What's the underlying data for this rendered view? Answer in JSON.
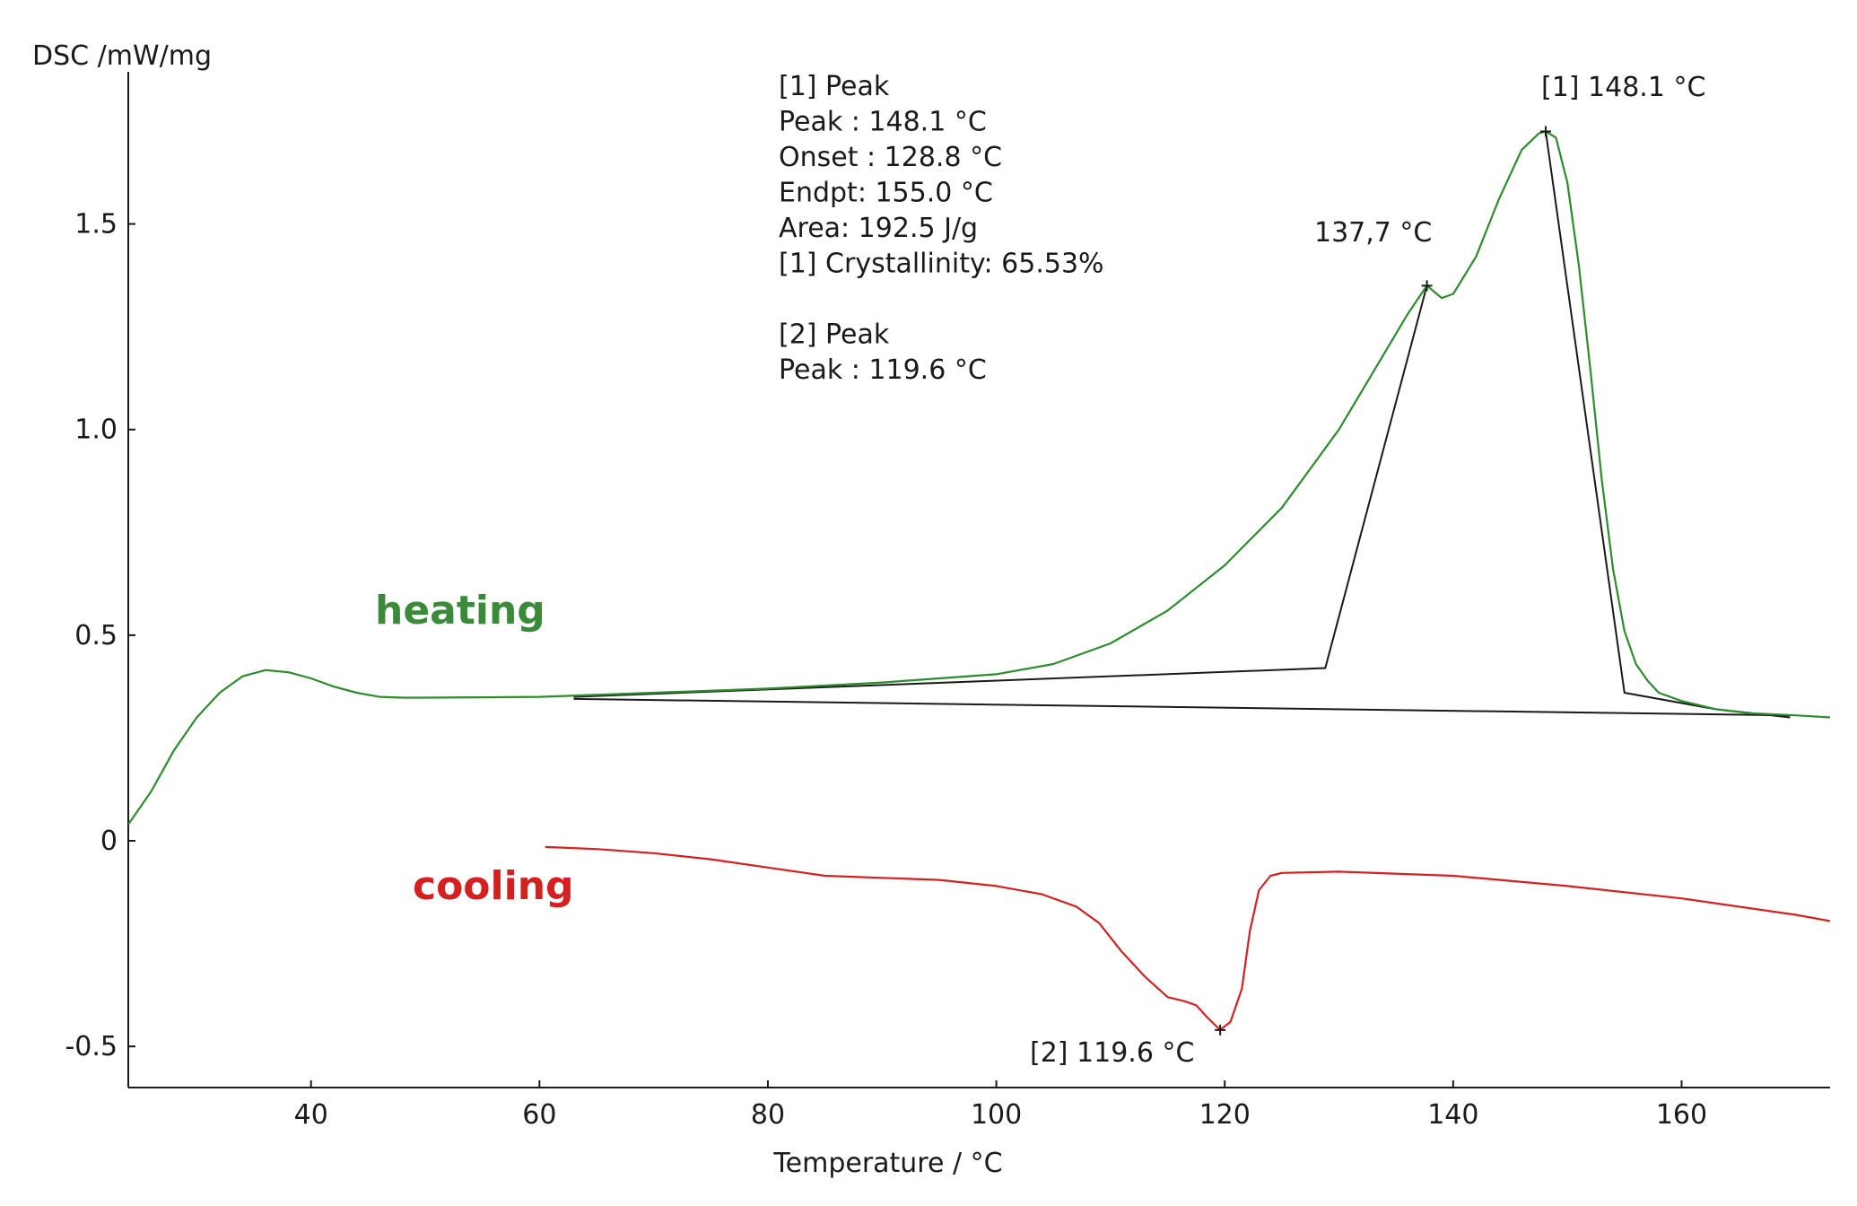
{
  "chart_data": {
    "type": "line",
    "ylabel": "DSC /mW/mg",
    "xlabel": "Temperature / °C",
    "xlim": [
      24,
      173
    ],
    "ylim": [
      -0.6,
      1.87
    ],
    "x_ticks": [
      40,
      60,
      80,
      100,
      120,
      140,
      160
    ],
    "y_ticks": [
      -0.5,
      0,
      0.5,
      1.0,
      1.5
    ],
    "y_tick_labels": [
      "-0.5",
      "0",
      "0.5",
      "1.0",
      "1.5"
    ],
    "grid": false,
    "colors": {
      "heating": "#2e8b2e",
      "cooling": "#d42020",
      "construction": "#1a1a1a"
    },
    "series": [
      {
        "name": "heating",
        "label_color": "#3a8a3a",
        "points": [
          [
            24,
            0.04
          ],
          [
            26,
            0.12
          ],
          [
            28,
            0.22
          ],
          [
            30,
            0.3
          ],
          [
            32,
            0.36
          ],
          [
            34,
            0.4
          ],
          [
            36,
            0.415
          ],
          [
            38,
            0.41
          ],
          [
            40,
            0.395
          ],
          [
            42,
            0.375
          ],
          [
            44,
            0.36
          ],
          [
            46,
            0.35
          ],
          [
            48,
            0.348
          ],
          [
            50,
            0.348
          ],
          [
            55,
            0.349
          ],
          [
            60,
            0.35
          ],
          [
            70,
            0.36
          ],
          [
            80,
            0.37
          ],
          [
            90,
            0.385
          ],
          [
            95,
            0.395
          ],
          [
            100,
            0.405
          ],
          [
            105,
            0.43
          ],
          [
            110,
            0.48
          ],
          [
            115,
            0.56
          ],
          [
            120,
            0.67
          ],
          [
            125,
            0.81
          ],
          [
            130,
            1.0
          ],
          [
            133,
            1.14
          ],
          [
            136,
            1.28
          ],
          [
            137.7,
            1.35
          ],
          [
            139,
            1.32
          ],
          [
            140,
            1.33
          ],
          [
            142,
            1.42
          ],
          [
            144,
            1.56
          ],
          [
            146,
            1.68
          ],
          [
            147.5,
            1.72
          ],
          [
            148.1,
            1.725
          ],
          [
            149,
            1.71
          ],
          [
            150,
            1.6
          ],
          [
            151,
            1.4
          ],
          [
            152,
            1.15
          ],
          [
            153,
            0.88
          ],
          [
            154,
            0.66
          ],
          [
            155,
            0.51
          ],
          [
            156,
            0.43
          ],
          [
            157,
            0.39
          ],
          [
            158,
            0.36
          ],
          [
            160,
            0.34
          ],
          [
            163,
            0.32
          ],
          [
            166,
            0.31
          ],
          [
            170,
            0.305
          ],
          [
            173,
            0.3
          ]
        ]
      },
      {
        "name": "cooling",
        "label_color": "#d42020",
        "points": [
          [
            60.5,
            -0.015
          ],
          [
            65,
            -0.02
          ],
          [
            70,
            -0.03
          ],
          [
            75,
            -0.045
          ],
          [
            80,
            -0.065
          ],
          [
            85,
            -0.085
          ],
          [
            90,
            -0.09
          ],
          [
            95,
            -0.095
          ],
          [
            100,
            -0.11
          ],
          [
            104,
            -0.13
          ],
          [
            107,
            -0.16
          ],
          [
            109,
            -0.2
          ],
          [
            111,
            -0.27
          ],
          [
            113,
            -0.33
          ],
          [
            115,
            -0.38
          ],
          [
            116.5,
            -0.39
          ],
          [
            117.5,
            -0.4
          ],
          [
            118.5,
            -0.43
          ],
          [
            119.6,
            -0.46
          ],
          [
            120.5,
            -0.44
          ],
          [
            121.5,
            -0.36
          ],
          [
            122.2,
            -0.22
          ],
          [
            123,
            -0.12
          ],
          [
            124,
            -0.085
          ],
          [
            125,
            -0.078
          ],
          [
            130,
            -0.075
          ],
          [
            140,
            -0.085
          ],
          [
            150,
            -0.11
          ],
          [
            160,
            -0.14
          ],
          [
            170,
            -0.18
          ],
          [
            173,
            -0.195
          ]
        ]
      }
    ],
    "construction_lines": [
      [
        [
          63,
          0.35
        ],
        [
          128.8,
          0.42
        ],
        [
          137.7,
          1.35
        ]
      ],
      [
        [
          148.1,
          1.725
        ],
        [
          155.0,
          0.36
        ],
        [
          163,
          0.32
        ],
        [
          169.5,
          0.3
        ]
      ],
      [
        [
          63,
          0.345
        ],
        [
          169.5,
          0.305
        ]
      ]
    ],
    "peak_markers": [
      [
        137.7,
        1.35
      ],
      [
        148.1,
        1.725
      ],
      [
        119.6,
        -0.46
      ]
    ],
    "annotations": {
      "peak1_label": "[1] 148.1 °C",
      "shoulder_label": "137,7 °C",
      "peak2_label": "[2] 119.6 °C",
      "info_lines": [
        "[1] Peak",
        "Peak : 148.1 °C",
        "Onset : 128.8 °C",
        "Endpt: 155.0 °C",
        "Area: 192.5 J/g",
        "[1] Crystallinity: 65.53%",
        "",
        "[2] Peak",
        "Peak : 119.6 °C"
      ]
    },
    "series_labels": {
      "heating": "heating",
      "cooling": "cooling"
    }
  }
}
